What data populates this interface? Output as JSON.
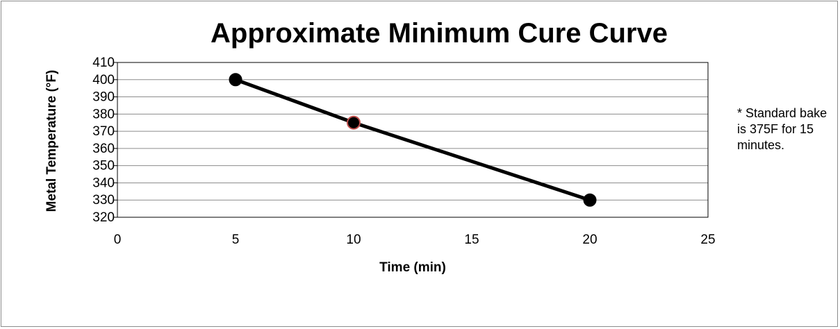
{
  "chart_data": {
    "type": "line",
    "title": "Approximate Minimum Cure Curve",
    "xlabel": "Time (min)",
    "ylabel": "Metal Temperature (°F)",
    "xlim": [
      0,
      25
    ],
    "ylim": [
      320,
      410
    ],
    "xticks": [
      0,
      5,
      10,
      15,
      20,
      25
    ],
    "yticks": [
      320,
      330,
      340,
      350,
      360,
      370,
      380,
      390,
      400,
      410
    ],
    "grid": "horizontal",
    "series": [
      {
        "x": [
          5,
          10,
          20
        ],
        "y": [
          400,
          375,
          330
        ],
        "color": "#000000",
        "highlight_index": 1,
        "highlight_stroke": "#c0504d"
      }
    ],
    "annotation": "* Standard bake  is  375F for 15 minutes."
  }
}
